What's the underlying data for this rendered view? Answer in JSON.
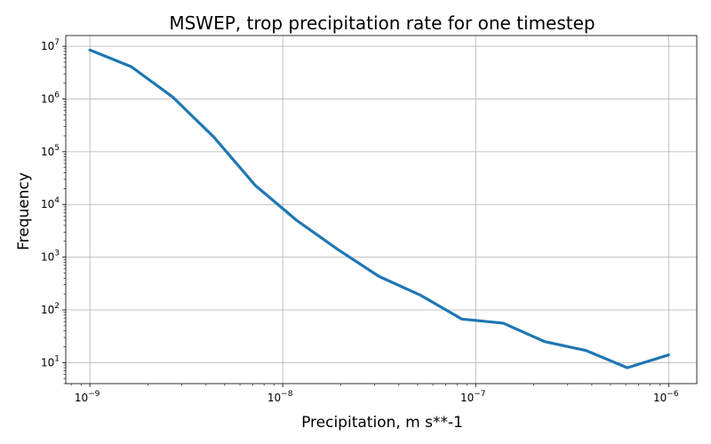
{
  "chart_data": {
    "type": "line",
    "title": "MSWEP, trop precipitation rate for one timestep",
    "xlabel": "Precipitation, m s**-1",
    "ylabel": "Frequency",
    "xscale": "log",
    "yscale": "log",
    "xlim": [
      7.5e-10,
      1.4e-06
    ],
    "ylim": [
      4,
      16000000.0
    ],
    "grid": true,
    "line_color": "#1f77b4",
    "x_ticks": [
      {
        "value": 1e-09,
        "base": "10",
        "exp": "−9"
      },
      {
        "value": 1e-08,
        "base": "10",
        "exp": "−8"
      },
      {
        "value": 1e-07,
        "base": "10",
        "exp": "−7"
      },
      {
        "value": 1e-06,
        "base": "10",
        "exp": "−6"
      }
    ],
    "y_ticks": [
      {
        "value": 10,
        "base": "10",
        "exp": "1"
      },
      {
        "value": 100,
        "base": "10",
        "exp": "2"
      },
      {
        "value": 1000,
        "base": "10",
        "exp": "3"
      },
      {
        "value": 10000,
        "base": "10",
        "exp": "4"
      },
      {
        "value": 100000,
        "base": "10",
        "exp": "5"
      },
      {
        "value": 1000000,
        "base": "10",
        "exp": "6"
      },
      {
        "value": 10000000,
        "base": "10",
        "exp": "7"
      }
    ],
    "series": [
      {
        "x": [
          1e-09,
          1.64e-09,
          2.68e-09,
          4.39e-09,
          7.2e-09,
          1.18e-08,
          1.93e-08,
          3.16e-08,
          5.18e-08,
          8.48e-08,
          1.39e-07,
          2.28e-07,
          3.73e-07,
          6.11e-07,
          1e-06
        ],
        "y": [
          8500000,
          4100000,
          1100000,
          190000,
          23000,
          5000,
          1400,
          430,
          190,
          67,
          56,
          25,
          17,
          8,
          14
        ]
      }
    ]
  }
}
